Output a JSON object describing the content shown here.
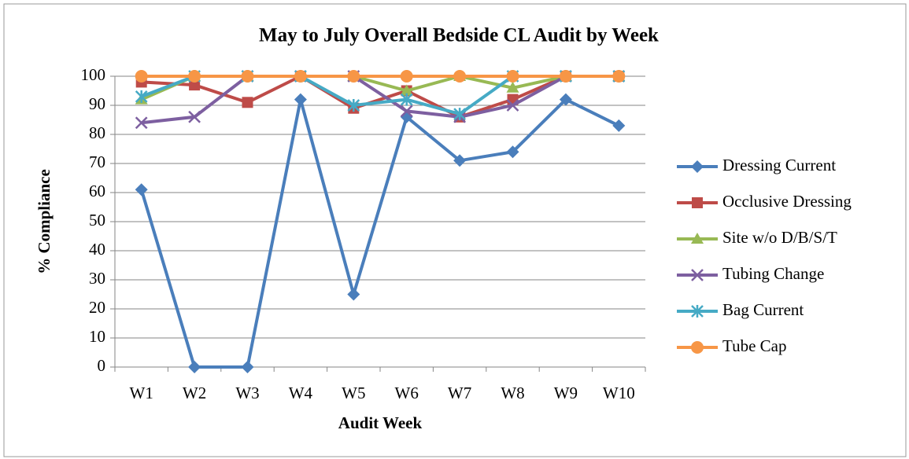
{
  "chart_data": {
    "type": "line",
    "title": "May to July Overall Bedside CL Audit by Week",
    "x_label": "Audit Week",
    "y_label": "% Compliance",
    "categories": [
      "W1",
      "W2",
      "W3",
      "W4",
      "W5",
      "W6",
      "W7",
      "W8",
      "W9",
      "W10"
    ],
    "ylim": [
      0,
      100
    ],
    "yticks": [
      0,
      10,
      20,
      30,
      40,
      50,
      60,
      70,
      80,
      90,
      100
    ],
    "grid": true,
    "legend": "right",
    "series": [
      {
        "name": "Dressing Current",
        "color": "#4a7ebb",
        "marker": "diamond",
        "values": [
          61,
          0,
          0,
          92,
          25,
          86,
          71,
          74,
          92,
          83
        ]
      },
      {
        "name": "Occlusive Dressing",
        "color": "#be4b48",
        "marker": "square",
        "values": [
          98,
          97,
          91,
          100,
          89,
          95,
          86,
          92,
          100,
          100
        ]
      },
      {
        "name": "Site w/o D/B/S/T",
        "color": "#98b954",
        "marker": "triangle",
        "values": [
          92,
          100,
          100,
          100,
          100,
          95,
          100,
          96,
          100,
          100
        ]
      },
      {
        "name": "Tubing Change",
        "color": "#7d5fa0",
        "marker": "x",
        "values": [
          84,
          86,
          100,
          100,
          100,
          88,
          86,
          90,
          100,
          100
        ]
      },
      {
        "name": "Bag Current",
        "color": "#46aac5",
        "marker": "star",
        "values": [
          93,
          100,
          100,
          100,
          90,
          92,
          87,
          100,
          100,
          100
        ]
      },
      {
        "name": "Tube Cap",
        "color": "#f79646",
        "marker": "circle",
        "values": [
          100,
          100,
          100,
          100,
          100,
          100,
          100,
          100,
          100,
          100
        ]
      }
    ]
  }
}
